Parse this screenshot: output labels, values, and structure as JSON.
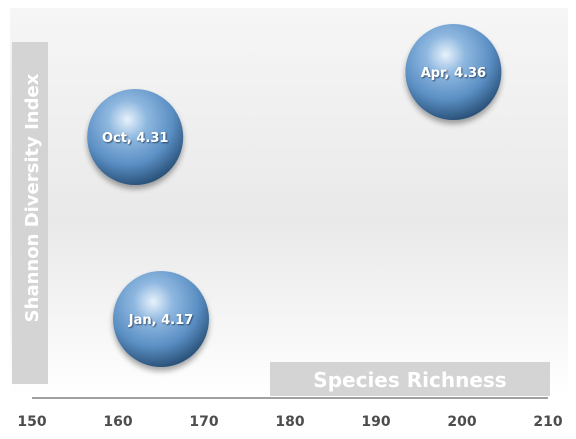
{
  "chart_data": {
    "type": "bubble",
    "xlabel": "Species Richness",
    "ylabel": "Shannon Diversity Index",
    "xlim": [
      150,
      210
    ],
    "ylim": [
      4.1,
      4.4
    ],
    "xticks": [
      "150",
      "160",
      "170",
      "180",
      "190",
      "200",
      "210"
    ],
    "grid": false,
    "legend": false,
    "points": [
      {
        "label": "Oct, 4.31",
        "x": 162,
        "y": 4.31
      },
      {
        "label": "Apr, 4.36",
        "x": 199,
        "y": 4.36
      },
      {
        "label": "Jan, 4.17",
        "x": 165,
        "y": 4.17
      }
    ],
    "colors": {
      "bubble": "#5b8fc4",
      "bubble_dark": "#23496f",
      "bubble_highlight": "#e8f2fb",
      "axis_title_bg": "#d4d4d4",
      "tick_text": "#4d4d4d",
      "axis_line": "#404040"
    }
  }
}
